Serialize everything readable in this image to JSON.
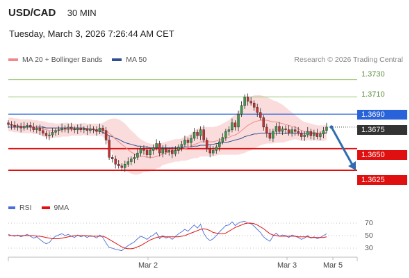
{
  "header": {
    "symbol": "USD/CAD",
    "timeframe": "30 MIN",
    "datetime": "Tuesday, March 3, 2026 7:26:44 AM CET"
  },
  "legend": {
    "ma20": "MA 20 + Bollinger Bands",
    "ma50": "MA 50",
    "research": "Research © 2026 Trading Central"
  },
  "rsi_legend": {
    "rsi": "RSI",
    "ma9": "9MA"
  },
  "colors": {
    "ma20": "#f08a8a",
    "ma50": "#2f4f8f",
    "band": "#f9d6d6",
    "green": "#8fc46a",
    "blue": "#2962d9",
    "red": "#e01010",
    "candle_up": "#3a9a4a",
    "candle_down": "#c83030",
    "rsi": "#4a6fd8",
    "rsi_ma": "#e01010",
    "arrow": "#2f6db0"
  },
  "chart_data": [
    {
      "type": "candlestick",
      "title": "USD/CAD",
      "ylim": [
        1.36,
        1.3745
      ],
      "price_levels": [
        {
          "value": 1.373,
          "label": "1.3730",
          "style": "green-target"
        },
        {
          "value": 1.371,
          "label": "1.3710",
          "style": "green-target"
        },
        {
          "value": 1.369,
          "label": "1.3690",
          "style": "blue-resistance"
        },
        {
          "value": 1.3675,
          "label": "1.3675",
          "style": "current-price"
        },
        {
          "value": 1.365,
          "label": "1.3650",
          "style": "red-support"
        },
        {
          "value": 1.3625,
          "label": "1.3625",
          "style": "red-support"
        }
      ],
      "forecast": {
        "from": 1.3675,
        "to": 1.3625,
        "direction": "down"
      },
      "x_ticks": [
        "Mar 2",
        "Mar 3",
        "Mar 5"
      ],
      "closes": [
        1.3678,
        1.3677,
        1.3675,
        1.3676,
        1.3674,
        1.3676,
        1.3677,
        1.3675,
        1.3672,
        1.3674,
        1.3671,
        1.3668,
        1.3665,
        1.3666,
        1.3669,
        1.3671,
        1.3672,
        1.3674,
        1.3673,
        1.3675,
        1.3673,
        1.3672,
        1.3674,
        1.3672,
        1.3673,
        1.3671,
        1.3673,
        1.3672,
        1.367,
        1.3674,
        1.3671,
        1.366,
        1.364,
        1.3638,
        1.3632,
        1.363,
        1.3628,
        1.3632,
        1.3635,
        1.3638,
        1.364,
        1.3645,
        1.365,
        1.3648,
        1.3643,
        1.3648,
        1.3651,
        1.3656,
        1.3645,
        1.365,
        1.3646,
        1.3648,
        1.3644,
        1.3648,
        1.3652,
        1.3655,
        1.366,
        1.3657,
        1.3662,
        1.3669,
        1.3665,
        1.3672,
        1.366,
        1.365,
        1.3645,
        1.3648,
        1.3652,
        1.3658,
        1.3663,
        1.367,
        1.3672,
        1.368,
        1.3675,
        1.369,
        1.37,
        1.371,
        1.3705,
        1.3703,
        1.3698,
        1.3692,
        1.3686,
        1.3675,
        1.3668,
        1.3662,
        1.367,
        1.3676,
        1.367,
        1.3673,
        1.3672,
        1.3668,
        1.3672,
        1.367,
        1.3668,
        1.3664,
        1.3666,
        1.367,
        1.3665,
        1.3668,
        1.3664,
        1.3667,
        1.3671,
        1.3675
      ],
      "ma20": [
        1.3678,
        1.3678,
        1.3677,
        1.3677,
        1.3676,
        1.3676,
        1.3676,
        1.3676,
        1.3675,
        1.3675,
        1.3674,
        1.3673,
        1.3672,
        1.3671,
        1.3671,
        1.3671,
        1.3671,
        1.3672,
        1.3672,
        1.3672,
        1.3672,
        1.3672,
        1.3672,
        1.3672,
        1.3673,
        1.3672,
        1.3672,
        1.3672,
        1.3672,
        1.3672,
        1.3672,
        1.3671,
        1.3668,
        1.3665,
        1.3661,
        1.3658,
        1.3655,
        1.3652,
        1.3649,
        1.3646,
        1.3644,
        1.3642,
        1.3641,
        1.3641,
        1.364,
        1.364,
        1.364,
        1.3641,
        1.3642,
        1.3644,
        1.3645,
        1.3646,
        1.3647,
        1.3648,
        1.3648,
        1.3649,
        1.365,
        1.3651,
        1.3653,
        1.3655,
        1.3656,
        1.3658,
        1.3658,
        1.3658,
        1.3658,
        1.3658,
        1.3659,
        1.366,
        1.3661,
        1.3662,
        1.3663,
        1.3665,
        1.3666,
        1.3668,
        1.3671,
        1.3674,
        1.3677,
        1.3679,
        1.3681,
        1.3682,
        1.3683,
        1.3683,
        1.3683,
        1.3682,
        1.3681,
        1.3681,
        1.368,
        1.3679,
        1.3678,
        1.3677,
        1.3676,
        1.3675,
        1.3673,
        1.3671,
        1.367,
        1.367,
        1.3669,
        1.3669,
        1.3668,
        1.3668,
        1.3668,
        1.3669
      ],
      "ma50": [
        1.3675,
        1.3675,
        1.3675,
        1.3675,
        1.3675,
        1.3675,
        1.3675,
        1.3675,
        1.3675,
        1.3675,
        1.3675,
        1.3675,
        1.3674,
        1.3674,
        1.3674,
        1.3674,
        1.3674,
        1.3674,
        1.3674,
        1.3674,
        1.3674,
        1.3674,
        1.3674,
        1.3674,
        1.3674,
        1.3673,
        1.3673,
        1.3672,
        1.3671,
        1.367,
        1.3669,
        1.3667,
        1.3665,
        1.3664,
        1.3662,
        1.3661,
        1.3659,
        1.3657,
        1.3656,
        1.3655,
        1.3654,
        1.3653,
        1.3653,
        1.3652,
        1.3652,
        1.3651,
        1.3651,
        1.3651,
        1.3651,
        1.3651,
        1.3651,
        1.3651,
        1.3651,
        1.3651,
        1.3651,
        1.3651,
        1.3652,
        1.3652,
        1.3652,
        1.3653,
        1.3653,
        1.3654,
        1.3654,
        1.3654,
        1.3655,
        1.3655,
        1.3656,
        1.3656,
        1.3657,
        1.3657,
        1.3658,
        1.3659,
        1.366,
        1.3661,
        1.3662,
        1.3664,
        1.3665,
        1.3666,
        1.3667,
        1.3667,
        1.3668,
        1.3668,
        1.3668,
        1.3668,
        1.3668,
        1.3668,
        1.3668,
        1.3668,
        1.3668,
        1.3668,
        1.3668,
        1.3668,
        1.3668,
        1.3668,
        1.3668,
        1.3668,
        1.3668,
        1.3668,
        1.3668,
        1.3668,
        1.3668,
        1.3668
      ],
      "band_width": [
        0.0008,
        0.0008,
        0.0008,
        0.0008,
        0.0008,
        0.0008,
        0.0008,
        0.0008,
        0.0008,
        0.0008,
        0.0008,
        0.0009,
        0.0009,
        0.0009,
        0.0009,
        0.0008,
        0.0008,
        0.0008,
        0.0008,
        0.0008,
        0.0007,
        0.0007,
        0.0007,
        0.0007,
        0.0007,
        0.0007,
        0.0007,
        0.0007,
        0.0007,
        0.0007,
        0.0008,
        0.0011,
        0.0016,
        0.002,
        0.0024,
        0.0026,
        0.0027,
        0.0027,
        0.0026,
        0.0025,
        0.0024,
        0.0022,
        0.002,
        0.0018,
        0.0017,
        0.0016,
        0.0015,
        0.0014,
        0.0014,
        0.0013,
        0.0013,
        0.0013,
        0.0013,
        0.0013,
        0.0013,
        0.0013,
        0.0014,
        0.0014,
        0.0015,
        0.0016,
        0.0017,
        0.0017,
        0.0017,
        0.0017,
        0.0017,
        0.0017,
        0.0017,
        0.0017,
        0.0018,
        0.0019,
        0.002,
        0.0022,
        0.0023,
        0.0025,
        0.0027,
        0.0029,
        0.003,
        0.0031,
        0.0031,
        0.003,
        0.0029,
        0.0028,
        0.0027,
        0.0026,
        0.0025,
        0.0024,
        0.0023,
        0.0022,
        0.002,
        0.0018,
        0.0016,
        0.0014,
        0.0013,
        0.0012,
        0.0011,
        0.001,
        0.001,
        0.0009,
        0.0009,
        0.0009,
        0.0009,
        0.0009
      ]
    },
    {
      "type": "line",
      "title": "RSI",
      "ylim": [
        20,
        80
      ],
      "y_ticks": [
        70,
        50,
        30
      ],
      "series": [
        {
          "name": "RSI",
          "values": [
            52,
            50,
            49,
            51,
            48,
            50,
            52,
            49,
            46,
            48,
            44,
            40,
            37,
            39,
            45,
            49,
            51,
            53,
            50,
            52,
            49,
            47,
            51,
            48,
            50,
            47,
            50,
            49,
            46,
            51,
            47,
            38,
            31,
            30,
            28,
            27,
            26,
            30,
            34,
            37,
            40,
            45,
            49,
            47,
            44,
            48,
            51,
            55,
            45,
            50,
            46,
            48,
            44,
            48,
            53,
            56,
            60,
            57,
            62,
            67,
            62,
            68,
            54,
            46,
            42,
            45,
            50,
            56,
            61,
            66,
            67,
            72,
            66,
            70,
            72,
            73,
            70,
            69,
            65,
            60,
            55,
            48,
            44,
            41,
            49,
            54,
            49,
            51,
            50,
            47,
            51,
            49,
            47,
            44,
            46,
            50,
            46,
            48,
            45,
            47,
            50,
            53
          ]
        },
        {
          "name": "9MA",
          "values": [
            50,
            50,
            50,
            50,
            50,
            50,
            50,
            50,
            50,
            49,
            49,
            48,
            47,
            46,
            45,
            45,
            45,
            46,
            47,
            48,
            49,
            50,
            50,
            50,
            50,
            50,
            49,
            49,
            49,
            49,
            49,
            47,
            44,
            41,
            38,
            35,
            32,
            30,
            29,
            29,
            30,
            32,
            34,
            37,
            40,
            43,
            45,
            47,
            48,
            48,
            48,
            48,
            48,
            48,
            48,
            49,
            50,
            52,
            54,
            56,
            58,
            60,
            61,
            60,
            58,
            55,
            54,
            53,
            53,
            54,
            57,
            60,
            63,
            65,
            67,
            69,
            70,
            70,
            69,
            67,
            64,
            61,
            57,
            53,
            51,
            50,
            49,
            49,
            49,
            49,
            49,
            49,
            48,
            48,
            48,
            48,
            47,
            47,
            47,
            47,
            47,
            48
          ]
        }
      ]
    }
  ]
}
